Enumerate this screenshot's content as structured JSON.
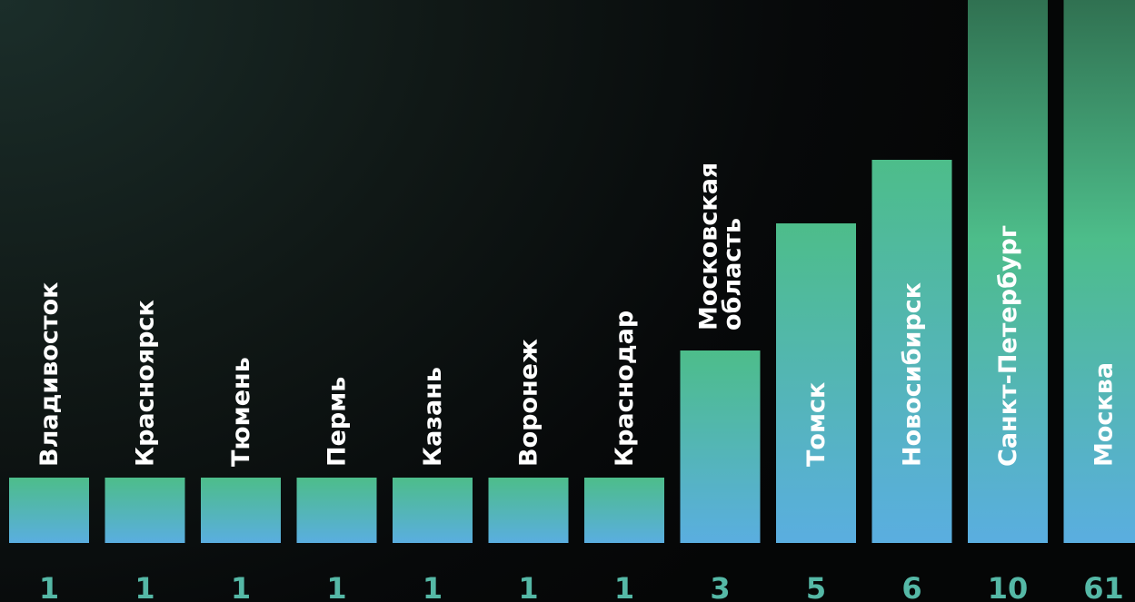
{
  "chart_data": {
    "type": "bar",
    "categories": [
      "Владивосток",
      "Красноярск",
      "Тюмень",
      "Пермь",
      "Казань",
      "Воронеж",
      "Краснодар",
      "Московская область",
      "Томск",
      "Новосибирск",
      "Санкт-Петербург",
      "Москва"
    ],
    "values": [
      1,
      1,
      1,
      1,
      1,
      1,
      1,
      3,
      5,
      6,
      10,
      61
    ],
    "value_labels": [
      "1",
      "1",
      "1",
      "1",
      "1",
      "1",
      "1",
      "3",
      "5",
      "6",
      "10",
      "61"
    ],
    "title": "",
    "xlabel": "",
    "ylabel": "",
    "orientation": "vertical",
    "category_labels": "rotated -90°, white bold text",
    "axis_break": "Москва bar (61) extends beyond the top of the image",
    "grid": false,
    "legend": "none",
    "colors": {
      "bar_top": "#4dbd8a",
      "bar_bottom": "#5aaee0",
      "value_text": "#55b8a6",
      "label_text": "#ffffff",
      "background_light": "#1b2e2a",
      "background_dark": "#050606"
    }
  }
}
